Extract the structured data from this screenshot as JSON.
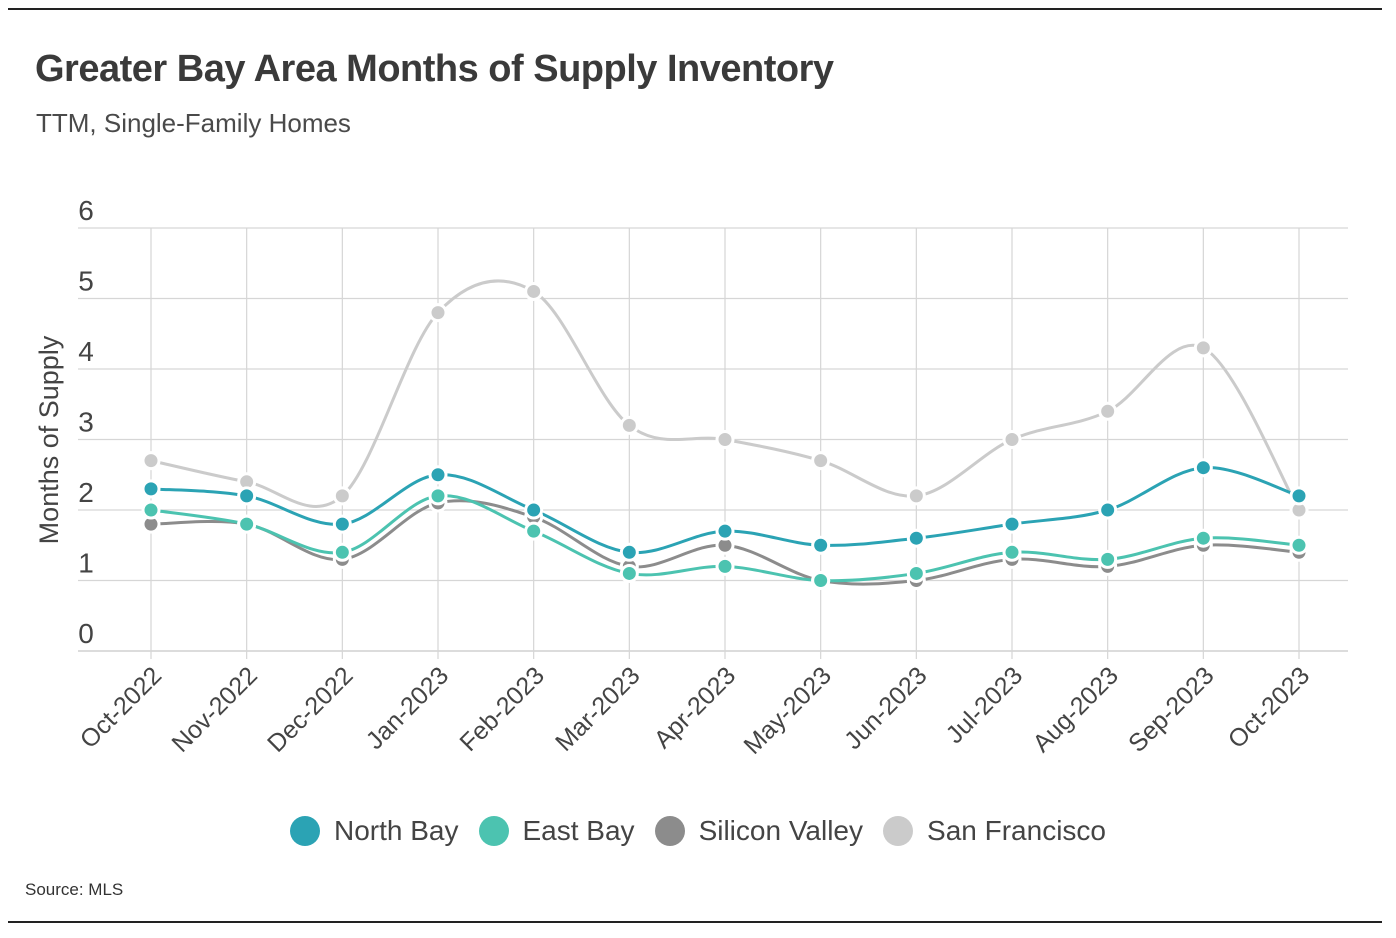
{
  "header": {
    "title": "Greater Bay Area Months of Supply Inventory",
    "subtitle": "TTM, Single-Family Homes"
  },
  "footer": {
    "source": "Source: MLS"
  },
  "chart_data": {
    "type": "line",
    "title": "Greater Bay Area Months of Supply Inventory",
    "subtitle": "TTM, Single-Family Homes",
    "xlabel": "",
    "ylabel": "Months of Supply",
    "ylim": [
      0,
      6
    ],
    "yticks": [
      0,
      1,
      2,
      3,
      4,
      5,
      6
    ],
    "grid": true,
    "legend_position": "bottom",
    "categories": [
      "Oct-2022",
      "Nov-2022",
      "Dec-2022",
      "Jan-2023",
      "Feb-2023",
      "Mar-2023",
      "Apr-2023",
      "May-2023",
      "Jun-2023",
      "Jul-2023",
      "Aug-2023",
      "Sep-2023",
      "Oct-2023"
    ],
    "series": [
      {
        "name": "North Bay",
        "color": "#2ba3b4",
        "values": [
          2.3,
          2.2,
          1.8,
          2.5,
          2.0,
          1.4,
          1.7,
          1.5,
          1.6,
          1.8,
          2.0,
          2.6,
          2.2
        ]
      },
      {
        "name": "East Bay",
        "color": "#4cc3b0",
        "values": [
          2.0,
          1.8,
          1.4,
          2.2,
          1.7,
          1.1,
          1.2,
          1.0,
          1.1,
          1.4,
          1.3,
          1.6,
          1.5
        ]
      },
      {
        "name": "Silicon Valley",
        "color": "#8c8c8c",
        "values": [
          1.8,
          1.8,
          1.3,
          2.1,
          1.9,
          1.2,
          1.5,
          1.0,
          1.0,
          1.3,
          1.2,
          1.5,
          1.4
        ]
      },
      {
        "name": "San Francisco",
        "color": "#cbcbcb",
        "values": [
          2.7,
          2.4,
          2.2,
          4.8,
          5.1,
          3.2,
          3.0,
          2.7,
          2.2,
          3.0,
          3.4,
          4.3,
          2.0
        ]
      }
    ]
  }
}
